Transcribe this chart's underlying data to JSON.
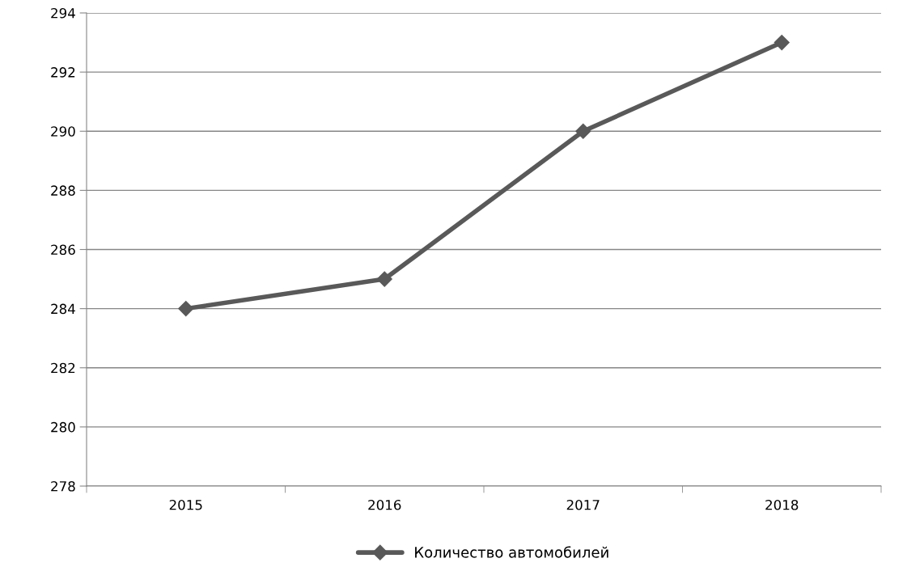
{
  "chart_data": {
    "type": "line",
    "categories": [
      "2015",
      "2016",
      "2017",
      "2018"
    ],
    "series": [
      {
        "name": "Количество автомобилей",
        "color": "#595959",
        "values": [
          284,
          285,
          290,
          293
        ]
      }
    ],
    "ylim": [
      278,
      294
    ],
    "yticks": [
      278,
      280,
      282,
      284,
      286,
      288,
      290,
      292,
      294
    ],
    "grid": "y",
    "legend": "bottom",
    "marker": "diamond",
    "line_style": "solid"
  }
}
